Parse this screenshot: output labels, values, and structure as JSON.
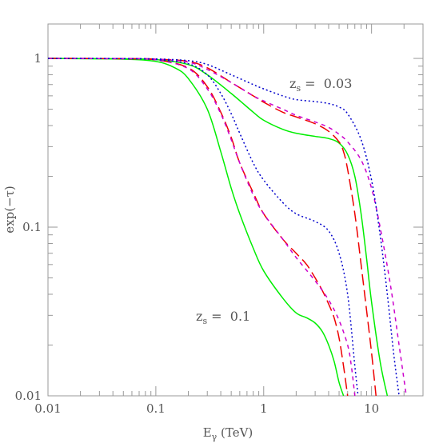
{
  "chart_data": {
    "type": "line",
    "x_scale": "log",
    "y_scale": "log",
    "xlim": [
      0.01,
      30
    ],
    "ylim": [
      0.01,
      1.6
    ],
    "xlabel": {
      "main": "E",
      "sub": "γ",
      "units": " (TeV)"
    },
    "ylabel": "exp(−τ)",
    "x_ticks": [
      {
        "value": 0.01,
        "label": "0.01"
      },
      {
        "value": 0.1,
        "label": "0.1"
      },
      {
        "value": 1,
        "label": "1"
      },
      {
        "value": 10,
        "label": "10"
      }
    ],
    "y_ticks": [
      {
        "value": 0.01,
        "label": "0.01"
      },
      {
        "value": 0.1,
        "label": "0.1"
      },
      {
        "value": 1,
        "label": "1"
      }
    ],
    "annotations": [
      {
        "main": "z",
        "sub": "s",
        "text": " =  0.03",
        "x": 1.4,
        "y": 0.53
      },
      {
        "main": "z",
        "sub": "s",
        "text": " =  0.1",
        "x": 0.17,
        "y": 0.041
      }
    ],
    "series": [
      {
        "group": "z=0.03",
        "color": "#00ee00",
        "dash": "",
        "points": [
          [
            0.01,
            1.0
          ],
          [
            0.05,
            0.995
          ],
          [
            0.1,
            0.985
          ],
          [
            0.2,
            0.92
          ],
          [
            0.3,
            0.8
          ],
          [
            0.5,
            0.62
          ],
          [
            0.8,
            0.48
          ],
          [
            1.0,
            0.43
          ],
          [
            1.5,
            0.38
          ],
          [
            2.0,
            0.36
          ],
          [
            3.0,
            0.345
          ],
          [
            4.0,
            0.335
          ],
          [
            5.0,
            0.315
          ],
          [
            6.0,
            0.27
          ],
          [
            7.0,
            0.2
          ],
          [
            8.0,
            0.12
          ],
          [
            9.0,
            0.065
          ],
          [
            10.0,
            0.036
          ],
          [
            12.0,
            0.016
          ],
          [
            14.0,
            0.01
          ]
        ]
      },
      {
        "group": "z=0.03",
        "color": "#ee0000",
        "dash": "14,6",
        "points": [
          [
            0.01,
            1.0
          ],
          [
            0.05,
            0.997
          ],
          [
            0.1,
            0.99
          ],
          [
            0.2,
            0.96
          ],
          [
            0.3,
            0.88
          ],
          [
            0.5,
            0.72
          ],
          [
            0.8,
            0.6
          ],
          [
            1.0,
            0.55
          ],
          [
            1.5,
            0.48
          ],
          [
            2.0,
            0.45
          ],
          [
            3.0,
            0.41
          ],
          [
            4.0,
            0.37
          ],
          [
            5.0,
            0.32
          ],
          [
            5.5,
            0.28
          ],
          [
            6.0,
            0.22
          ],
          [
            7.0,
            0.12
          ],
          [
            8.0,
            0.06
          ],
          [
            9.0,
            0.032
          ],
          [
            10.0,
            0.018
          ],
          [
            11.0,
            0.01
          ]
        ]
      },
      {
        "group": "z=0.03",
        "color": "#cc00cc",
        "dash": "5,5",
        "points": [
          [
            0.01,
            1.0
          ],
          [
            0.05,
            0.997
          ],
          [
            0.1,
            0.99
          ],
          [
            0.2,
            0.95
          ],
          [
            0.3,
            0.86
          ],
          [
            0.5,
            0.72
          ],
          [
            0.8,
            0.6
          ],
          [
            1.0,
            0.56
          ],
          [
            1.5,
            0.5
          ],
          [
            2.0,
            0.46
          ],
          [
            3.0,
            0.42
          ],
          [
            4.0,
            0.39
          ],
          [
            5.0,
            0.355
          ],
          [
            6.0,
            0.32
          ],
          [
            8.0,
            0.25
          ],
          [
            10.0,
            0.17
          ],
          [
            12.0,
            0.1
          ],
          [
            15.0,
            0.045
          ],
          [
            18.0,
            0.02
          ],
          [
            21.0,
            0.01
          ]
        ]
      },
      {
        "group": "z=0.03",
        "color": "#0000cc",
        "dash": "2,3",
        "points": [
          [
            0.01,
            1.0
          ],
          [
            0.05,
            0.998
          ],
          [
            0.1,
            0.993
          ],
          [
            0.2,
            0.97
          ],
          [
            0.3,
            0.92
          ],
          [
            0.5,
            0.8
          ],
          [
            0.8,
            0.7
          ],
          [
            1.0,
            0.66
          ],
          [
            1.5,
            0.6
          ],
          [
            2.0,
            0.57
          ],
          [
            3.0,
            0.555
          ],
          [
            4.0,
            0.54
          ],
          [
            5.0,
            0.515
          ],
          [
            6.0,
            0.47
          ],
          [
            8.0,
            0.33
          ],
          [
            10.0,
            0.19
          ],
          [
            12.0,
            0.09
          ],
          [
            14.0,
            0.04
          ],
          [
            16.0,
            0.018
          ],
          [
            18.0,
            0.01
          ]
        ]
      },
      {
        "group": "z=0.1",
        "color": "#00ee00",
        "dash": "",
        "points": [
          [
            0.01,
            1.0
          ],
          [
            0.05,
            0.99
          ],
          [
            0.1,
            0.96
          ],
          [
            0.15,
            0.88
          ],
          [
            0.2,
            0.76
          ],
          [
            0.3,
            0.5
          ],
          [
            0.4,
            0.28
          ],
          [
            0.5,
            0.17
          ],
          [
            0.6,
            0.12
          ],
          [
            0.8,
            0.075
          ],
          [
            1.0,
            0.055
          ],
          [
            1.5,
            0.038
          ],
          [
            2.0,
            0.031
          ],
          [
            2.5,
            0.029
          ],
          [
            3.0,
            0.027
          ],
          [
            3.5,
            0.024
          ],
          [
            4.0,
            0.02
          ],
          [
            4.5,
            0.016
          ],
          [
            5.0,
            0.012
          ],
          [
            5.5,
            0.01
          ]
        ]
      },
      {
        "group": "z=0.1",
        "color": "#ee0000",
        "dash": "14,6",
        "points": [
          [
            0.01,
            1.0
          ],
          [
            0.05,
            0.995
          ],
          [
            0.1,
            0.98
          ],
          [
            0.2,
            0.88
          ],
          [
            0.3,
            0.68
          ],
          [
            0.4,
            0.48
          ],
          [
            0.5,
            0.34
          ],
          [
            0.6,
            0.24
          ],
          [
            0.8,
            0.16
          ],
          [
            1.0,
            0.12
          ],
          [
            1.5,
            0.085
          ],
          [
            2.0,
            0.07
          ],
          [
            2.5,
            0.06
          ],
          [
            3.0,
            0.05
          ],
          [
            3.5,
            0.042
          ],
          [
            4.0,
            0.035
          ],
          [
            4.5,
            0.029
          ],
          [
            5.0,
            0.022
          ],
          [
            5.5,
            0.015
          ],
          [
            6.0,
            0.01
          ]
        ]
      },
      {
        "group": "z=0.1",
        "color": "#cc00cc",
        "dash": "5,5",
        "points": [
          [
            0.01,
            1.0
          ],
          [
            0.05,
            0.995
          ],
          [
            0.1,
            0.98
          ],
          [
            0.2,
            0.87
          ],
          [
            0.3,
            0.66
          ],
          [
            0.4,
            0.47
          ],
          [
            0.5,
            0.33
          ],
          [
            0.6,
            0.24
          ],
          [
            0.8,
            0.155
          ],
          [
            1.0,
            0.12
          ],
          [
            1.5,
            0.085
          ],
          [
            2.0,
            0.066
          ],
          [
            3.0,
            0.048
          ],
          [
            4.0,
            0.037
          ],
          [
            5.0,
            0.028
          ],
          [
            6.0,
            0.02
          ],
          [
            6.5,
            0.015
          ],
          [
            7.0,
            0.01
          ]
        ]
      },
      {
        "group": "z=0.1",
        "color": "#0000cc",
        "dash": "2,3",
        "points": [
          [
            0.01,
            1.0
          ],
          [
            0.05,
            0.997
          ],
          [
            0.1,
            0.985
          ],
          [
            0.2,
            0.93
          ],
          [
            0.3,
            0.8
          ],
          [
            0.4,
            0.62
          ],
          [
            0.5,
            0.47
          ],
          [
            0.6,
            0.36
          ],
          [
            0.8,
            0.24
          ],
          [
            1.0,
            0.19
          ],
          [
            1.5,
            0.14
          ],
          [
            2.0,
            0.12
          ],
          [
            3.0,
            0.108
          ],
          [
            4.0,
            0.095
          ],
          [
            5.0,
            0.07
          ],
          [
            6.0,
            0.04
          ],
          [
            7.0,
            0.015
          ],
          [
            7.5,
            0.01
          ]
        ]
      }
    ]
  }
}
